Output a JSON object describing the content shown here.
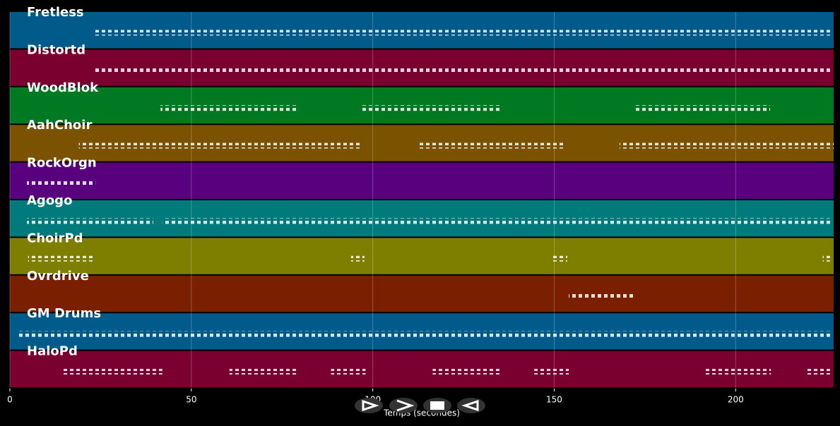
{
  "chart_data": {
    "type": "piano-roll",
    "xlabel": "Temps (secondes)",
    "xlim": [
      0,
      227
    ],
    "xticks": [
      0,
      50,
      100,
      150,
      200
    ],
    "grid": true,
    "series": [
      {
        "name": "Fretless",
        "color": "#005a8a",
        "values": [
          [
            23,
            226
          ]
        ]
      },
      {
        "name": "Distortd",
        "color": "#7a0030",
        "values": [
          [
            23,
            226
          ]
        ]
      },
      {
        "name": "WoodBlok",
        "color": "#007a22",
        "values": [
          [
            41.5,
            79
          ],
          [
            97,
            135
          ],
          [
            172.5,
            209.5
          ]
        ]
      },
      {
        "name": "AahChoir",
        "color": "#7a5200",
        "values": [
          [
            19,
            97
          ],
          [
            112.5,
            153
          ],
          [
            168,
            227
          ]
        ]
      },
      {
        "name": "RockOrgn",
        "color": "#58007e",
        "values": [
          [
            4.7,
            23.6
          ]
        ]
      },
      {
        "name": "Agogo",
        "color": "#007a7a",
        "values": [
          [
            4.7,
            39.5
          ],
          [
            42,
            226
          ]
        ]
      },
      {
        "name": "ChoirPd",
        "color": "#7e7e00",
        "values": [
          [
            5,
            23
          ],
          [
            94,
            97.7
          ],
          [
            149.5,
            153.6
          ],
          [
            224,
            226
          ]
        ]
      },
      {
        "name": "Ovrdrive",
        "color": "#7a2000",
        "values": [
          [
            154,
            172
          ]
        ]
      },
      {
        "name": "GM Drums",
        "color": "#005a8a",
        "values": [
          [
            2.5,
            226
          ]
        ]
      },
      {
        "name": "HaloPd",
        "color": "#7a0030",
        "values": [
          [
            14,
            42
          ],
          [
            60.5,
            79
          ],
          [
            88.5,
            98
          ],
          [
            116.5,
            135
          ],
          [
            144.5,
            154
          ],
          [
            191,
            209.7
          ],
          [
            219,
            226
          ]
        ]
      }
    ]
  }
}
